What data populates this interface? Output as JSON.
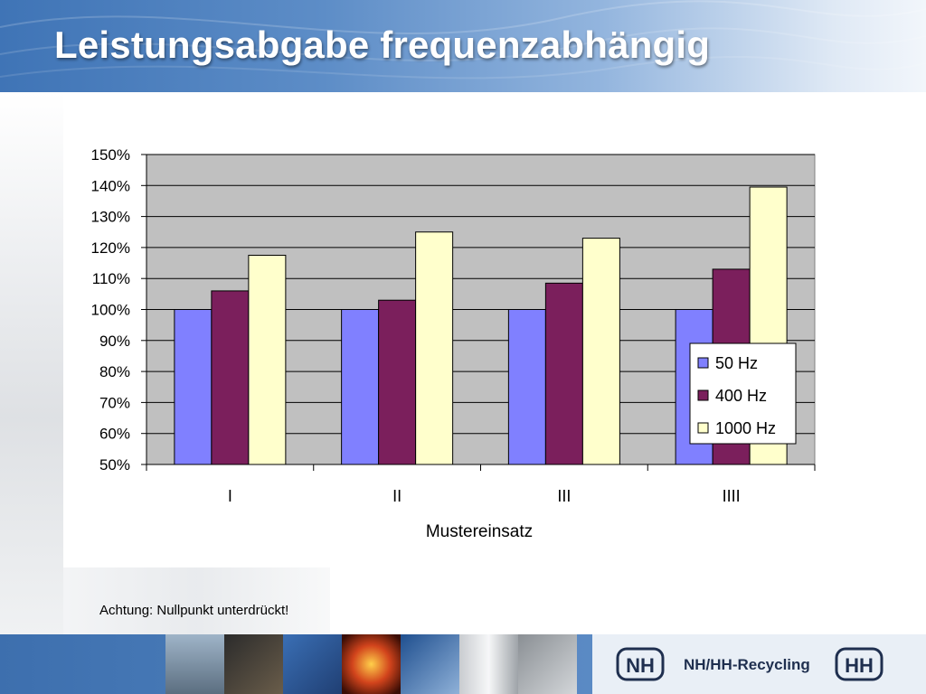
{
  "slide": {
    "title": "Leistungsabgabe frequenzabhängig",
    "note": "Achtung: Nullpunkt unterdrückt!"
  },
  "footer": {
    "brand": "NH/HH-Recycling",
    "logo_left": "NH",
    "logo_right": "HH"
  },
  "colors": {
    "header_blue": "#3f74b6",
    "series_50": "#8080ff",
    "series_400": "#7b1f5c",
    "series_1000": "#ffffcc",
    "plot_bg": "#c0c0c0"
  },
  "chart_data": {
    "type": "bar",
    "title": "",
    "xlabel": "Mustereinsatz",
    "ylabel": "",
    "categories": [
      "I",
      "II",
      "III",
      "IIII"
    ],
    "series": [
      {
        "name": "50 Hz",
        "values": [
          100,
          100,
          100,
          100
        ]
      },
      {
        "name": "400 Hz",
        "values": [
          106,
          103,
          108.5,
          113
        ]
      },
      {
        "name": "1000 Hz",
        "values": [
          117.5,
          125,
          123,
          139.5
        ]
      }
    ],
    "ylim": [
      50,
      150
    ],
    "yticks": [
      "50%",
      "60%",
      "70%",
      "80%",
      "90%",
      "100%",
      "110%",
      "120%",
      "130%",
      "140%",
      "150%"
    ],
    "grid": true,
    "legend_position": "right"
  }
}
